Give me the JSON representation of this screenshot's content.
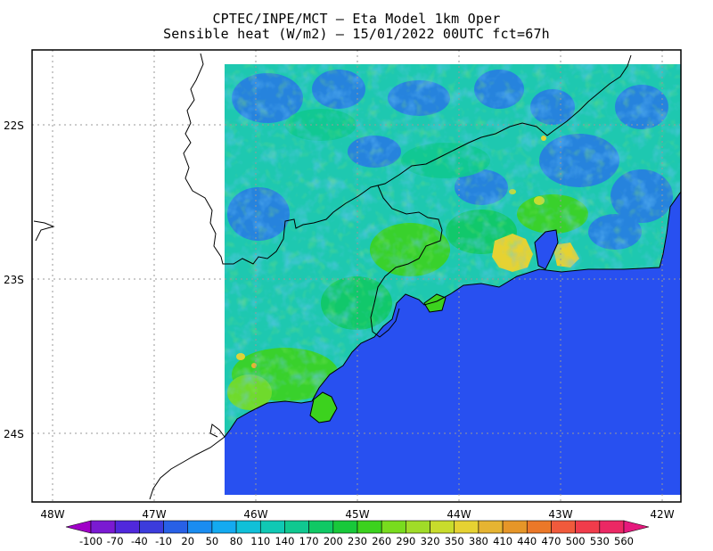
{
  "title_line1": "CPTEC/INPE/MCT –   Eta Model 1km Oper",
  "title_line2": "Sensible heat (W/m2) – 15/01/2022 00UTC fct=67h",
  "lat_labels": [
    "22S",
    "23S",
    "24S"
  ],
  "lon_labels": [
    "48W",
    "47W",
    "46W",
    "45W",
    "44W",
    "43W",
    "42W"
  ],
  "colorbar": {
    "labels": [
      "-100",
      "-70",
      "-40",
      "-10",
      "20",
      "50",
      "80",
      "110",
      "140",
      "170",
      "200",
      "230",
      "260",
      "290",
      "320",
      "350",
      "380",
      "410",
      "440",
      "470",
      "500",
      "530",
      "560"
    ],
    "colors": [
      "#a000c8",
      "#7a1ad2",
      "#5028dc",
      "#3c3cdc",
      "#2860e6",
      "#1a8cf0",
      "#14aaf0",
      "#10c0d8",
      "#10c8b4",
      "#10c890",
      "#10c864",
      "#18c83a",
      "#3cd21e",
      "#78dc1e",
      "#a0dc28",
      "#c8dc2c",
      "#e6d232",
      "#e6b432",
      "#e69628",
      "#eb7828",
      "#f05a3c",
      "#f03c4b",
      "#eb2864",
      "#e6197d"
    ]
  },
  "colors": {
    "ocean": "#2850f0",
    "land_base": "#1ec8b0",
    "frame": "#000000",
    "grid": "#999999"
  }
}
